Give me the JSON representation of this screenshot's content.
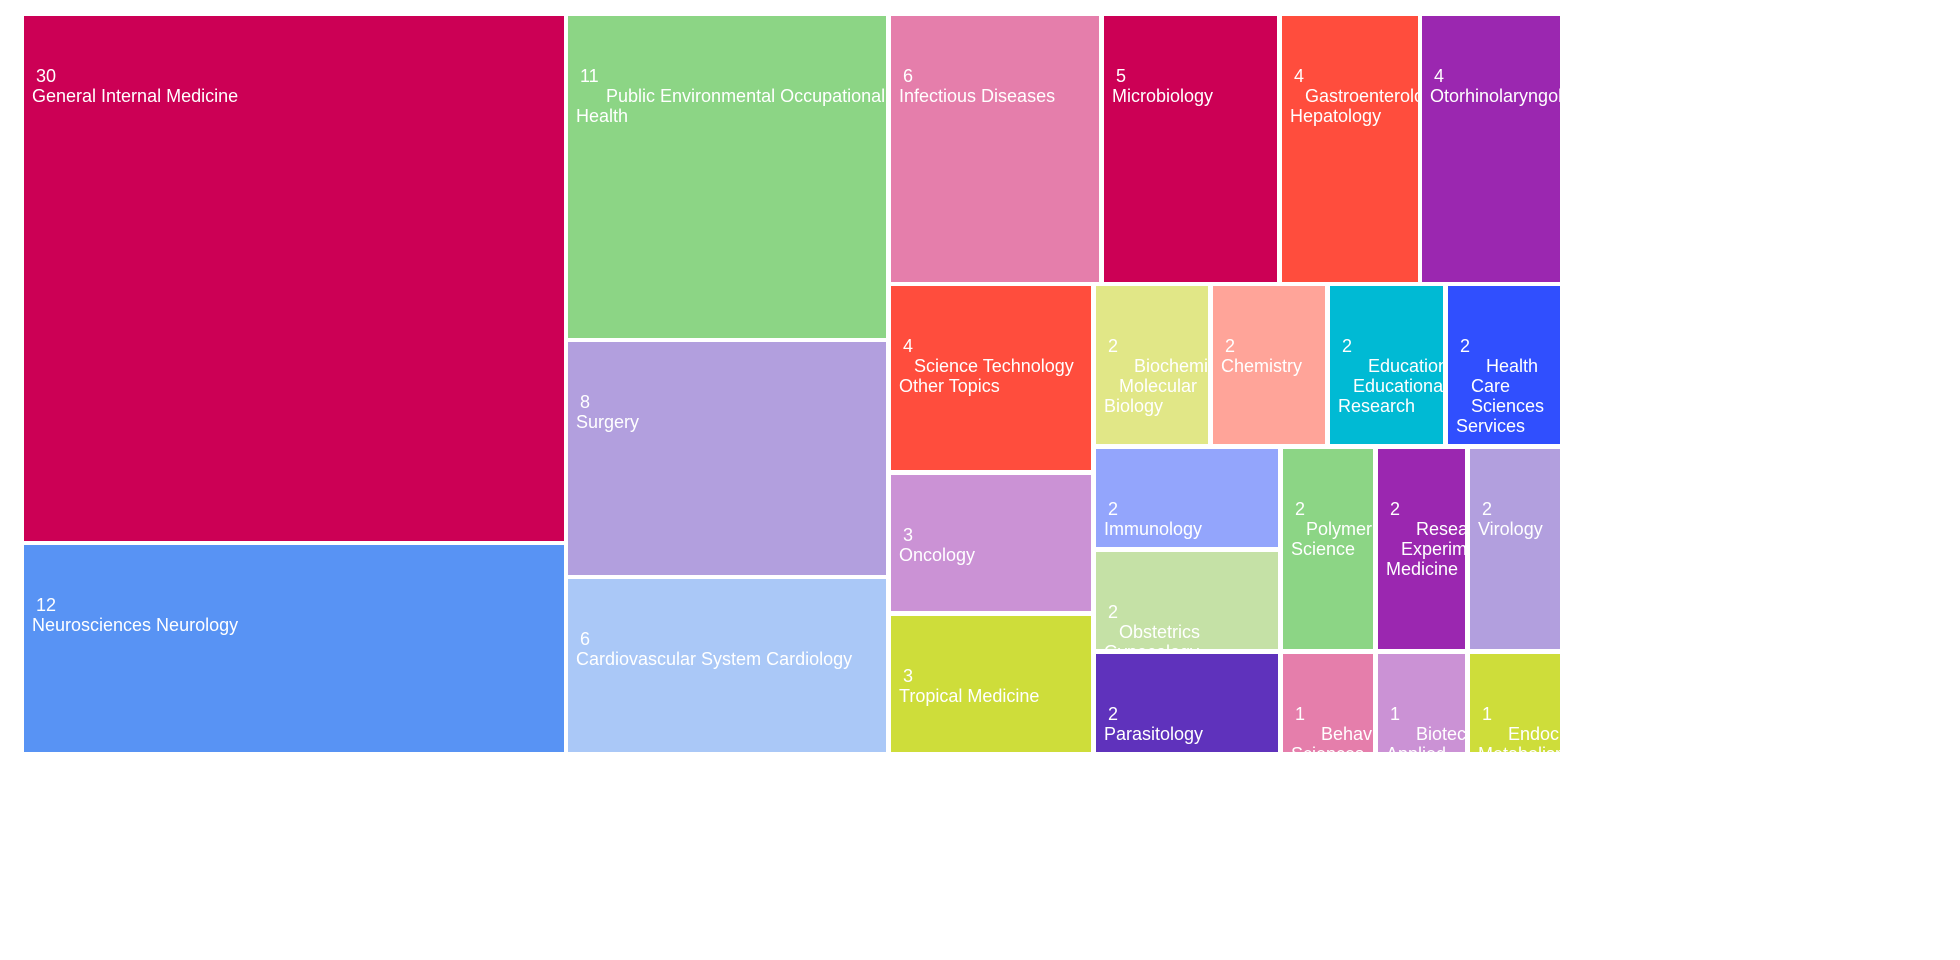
{
  "chart_data": {
    "type": "treemap",
    "title": "",
    "items": [
      {
        "name": "General Internal Medicine",
        "value": 30,
        "color": "#cc0055"
      },
      {
        "name": "Neurosciences Neurology",
        "value": 12,
        "color": "#5893f4"
      },
      {
        "name": "Public Environmental Occupational Health",
        "value": 11,
        "color": "#8cd585"
      },
      {
        "name": "Surgery",
        "value": 8,
        "color": "#b29fde"
      },
      {
        "name": "Cardiovascular System Cardiology",
        "value": 6,
        "color": "#aac8f7"
      },
      {
        "name": "Infectious Diseases",
        "value": 6,
        "color": "#e57eab"
      },
      {
        "name": "Microbiology",
        "value": 5,
        "color": "#cc0055"
      },
      {
        "name": "Gastroenterology Hepatology",
        "value": 4,
        "color": "#ff4d3d"
      },
      {
        "name": "Otorhinolaryngology",
        "value": 4,
        "color": "#9b27b0"
      },
      {
        "name": "Science Technology Other Topics",
        "value": 4,
        "color": "#ff4d3d"
      },
      {
        "name": "Oncology",
        "value": 3,
        "color": "#cb92d5"
      },
      {
        "name": "Tropical Medicine",
        "value": 3,
        "color": "#cedd3a"
      },
      {
        "name": "Biochemistry Molecular Biology",
        "value": 2,
        "color": "#e1e787"
      },
      {
        "name": "Chemistry",
        "value": 2,
        "color": "#ffa499"
      },
      {
        "name": "Education Educational Research",
        "value": 2,
        "color": "#00bad4"
      },
      {
        "name": "Health Care Sciences Services",
        "value": 2,
        "color": "#304ffe"
      },
      {
        "name": "Immunology",
        "value": 2,
        "color": "#93a5fc"
      },
      {
        "name": "Obstetrics Gynecology",
        "value": 2,
        "color": "#c5e1a6"
      },
      {
        "name": "Parasitology",
        "value": 2,
        "color": "#5f32bc"
      },
      {
        "name": "Polymer Science",
        "value": 2,
        "color": "#8cd585"
      },
      {
        "name": "Research Experimental Medicine",
        "value": 2,
        "color": "#9b27b0"
      },
      {
        "name": "Virology",
        "value": 2,
        "color": "#b29fde"
      },
      {
        "name": "Behavioral Sciences",
        "value": 1,
        "color": "#e57eab"
      },
      {
        "name": "Biotechnology Applied Microbiology",
        "value": 1,
        "color": "#cb92d5"
      },
      {
        "name": "Endocrinology Metabolism",
        "value": 1,
        "color": "#cedd3a"
      }
    ]
  }
}
